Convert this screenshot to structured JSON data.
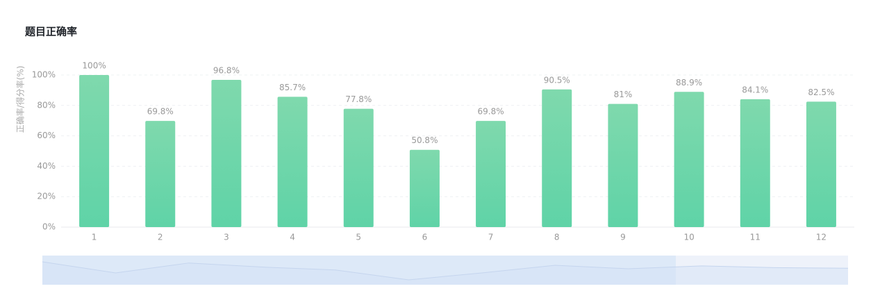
{
  "chart_data": {
    "type": "bar",
    "title": "题目正确率",
    "y_label": "正确率/得分率(%)",
    "categories": [
      "1",
      "2",
      "3",
      "4",
      "5",
      "6",
      "7",
      "8",
      "9",
      "10",
      "11",
      "12"
    ],
    "values": [
      100,
      69.8,
      96.8,
      85.7,
      77.8,
      50.8,
      69.8,
      90.5,
      81,
      88.9,
      84.1,
      82.5
    ],
    "value_labels": [
      "100%",
      "69.8%",
      "96.8%",
      "85.7%",
      "77.8%",
      "50.8%",
      "69.8%",
      "90.5%",
      "81%",
      "88.9%",
      "84.1%",
      "82.5%"
    ],
    "color": "#6dd6a9",
    "ylim": [
      0,
      100
    ],
    "yticks": [
      {
        "value": 0,
        "label": "0%"
      },
      {
        "value": 20,
        "label": "20%"
      },
      {
        "value": 40,
        "label": "40%"
      },
      {
        "value": 60,
        "label": "60%"
      },
      {
        "value": 80,
        "label": "80%"
      },
      {
        "value": 100,
        "label": "100%"
      }
    ],
    "grid": true
  }
}
